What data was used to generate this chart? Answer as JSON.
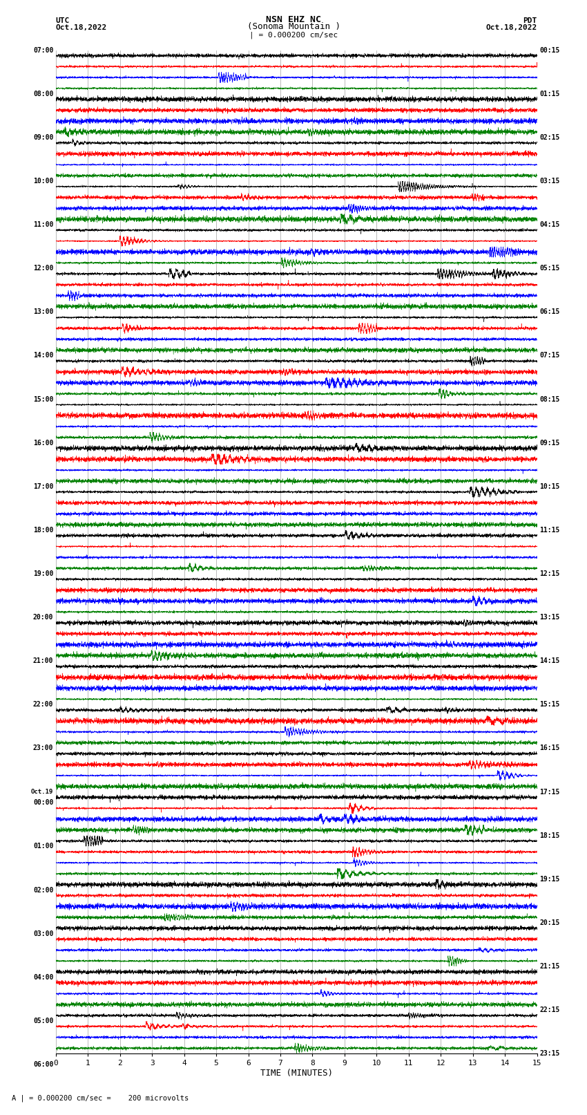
{
  "title_line1": "NSN EHZ NC",
  "title_line2": "(Sonoma Mountain )",
  "title_scale": "| = 0.000200 cm/sec",
  "left_header_line1": "UTC",
  "left_header_line2": "Oct.18,2022",
  "right_header_line1": "PDT",
  "right_header_line2": "Oct.18,2022",
  "xlabel": "TIME (MINUTES)",
  "footer": "A | = 0.000200 cm/sec =    200 microvolts",
  "utc_times": [
    "07:00",
    "",
    "",
    "",
    "08:00",
    "",
    "",
    "",
    "09:00",
    "",
    "",
    "",
    "10:00",
    "",
    "",
    "",
    "11:00",
    "",
    "",
    "",
    "12:00",
    "",
    "",
    "",
    "13:00",
    "",
    "",
    "",
    "14:00",
    "",
    "",
    "",
    "15:00",
    "",
    "",
    "",
    "16:00",
    "",
    "",
    "",
    "17:00",
    "",
    "",
    "",
    "18:00",
    "",
    "",
    "",
    "19:00",
    "",
    "",
    "",
    "20:00",
    "",
    "",
    "",
    "21:00",
    "",
    "",
    "",
    "22:00",
    "",
    "",
    "",
    "23:00",
    "",
    "",
    "",
    "Oct.19",
    "00:00",
    "",
    "",
    "",
    "01:00",
    "",
    "",
    "",
    "02:00",
    "",
    "",
    "",
    "03:00",
    "",
    "",
    "",
    "04:00",
    "",
    "",
    "",
    "05:00",
    "",
    "",
    "",
    "06:00",
    "",
    ""
  ],
  "pdt_times": [
    "00:15",
    "",
    "",
    "",
    "01:15",
    "",
    "",
    "",
    "02:15",
    "",
    "",
    "",
    "03:15",
    "",
    "",
    "",
    "04:15",
    "",
    "",
    "",
    "05:15",
    "",
    "",
    "",
    "06:15",
    "",
    "",
    "",
    "07:15",
    "",
    "",
    "",
    "08:15",
    "",
    "",
    "",
    "09:15",
    "",
    "",
    "",
    "10:15",
    "",
    "",
    "",
    "11:15",
    "",
    "",
    "",
    "12:15",
    "",
    "",
    "",
    "13:15",
    "",
    "",
    "",
    "14:15",
    "",
    "",
    "",
    "15:15",
    "",
    "",
    "",
    "16:15",
    "",
    "",
    "",
    "17:15",
    "",
    "",
    "",
    "18:15",
    "",
    "",
    "",
    "19:15",
    "",
    "",
    "",
    "20:15",
    "",
    "",
    "",
    "21:15",
    "",
    "",
    "",
    "22:15",
    "",
    "",
    "",
    "23:15",
    "",
    "",
    ""
  ],
  "n_rows": 92,
  "colors": [
    "black",
    "red",
    "blue",
    "green"
  ],
  "x_ticks": [
    0,
    1,
    2,
    3,
    4,
    5,
    6,
    7,
    8,
    9,
    10,
    11,
    12,
    13,
    14,
    15
  ],
  "fig_width": 8.5,
  "fig_height": 16.13,
  "bg_color": "white",
  "seed": 42
}
